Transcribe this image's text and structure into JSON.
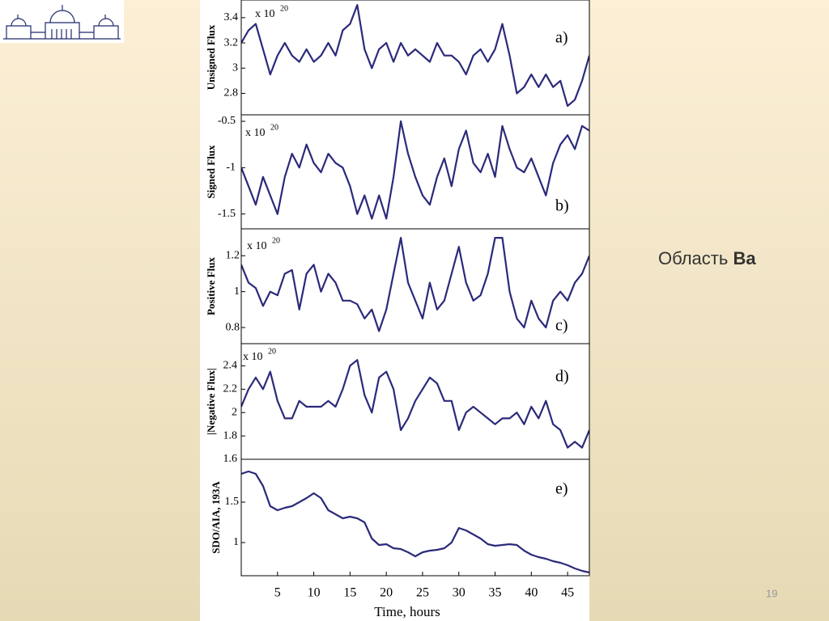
{
  "chart_data": [
    {
      "type": "line",
      "ylabel": "Unsigned Flux",
      "annotation": "x 10",
      "exponent": "20",
      "panel_label": "a)",
      "color": "#2b2a7a",
      "x": [
        0,
        1,
        2,
        3,
        4,
        5,
        6,
        7,
        8,
        9,
        10,
        11,
        12,
        13,
        14,
        15,
        16,
        17,
        18,
        19,
        20,
        21,
        22,
        23,
        24,
        25,
        26,
        27,
        28,
        29,
        30,
        31,
        32,
        33,
        34,
        35,
        36,
        37,
        38,
        39,
        40,
        41,
        42,
        43,
        44,
        45,
        46,
        47,
        48
      ],
      "values": [
        3.2,
        3.3,
        3.35,
        3.15,
        2.95,
        3.1,
        3.2,
        3.1,
        3.05,
        3.15,
        3.05,
        3.1,
        3.2,
        3.1,
        3.3,
        3.35,
        3.5,
        3.15,
        3.0,
        3.15,
        3.2,
        3.05,
        3.2,
        3.1,
        3.15,
        3.1,
        3.05,
        3.2,
        3.1,
        3.1,
        3.05,
        2.95,
        3.1,
        3.15,
        3.05,
        3.15,
        3.35,
        3.1,
        2.8,
        2.85,
        2.95,
        2.85,
        2.95,
        2.85,
        2.9,
        2.7,
        2.75,
        2.9,
        3.1
      ],
      "xlim": [
        0,
        48
      ],
      "ylim": [
        2.63,
        3.54
      ],
      "yticks": [
        2.8,
        3,
        3.2,
        3.4
      ]
    },
    {
      "type": "line",
      "ylabel": "Signed Flux",
      "annotation": "x 10",
      "exponent": "20",
      "panel_label": "b)",
      "color": "#2b2a7a",
      "x": [
        0,
        1,
        2,
        3,
        4,
        5,
        6,
        7,
        8,
        9,
        10,
        11,
        12,
        13,
        14,
        15,
        16,
        17,
        18,
        19,
        20,
        21,
        22,
        23,
        24,
        25,
        26,
        27,
        28,
        29,
        30,
        31,
        32,
        33,
        34,
        35,
        36,
        37,
        38,
        39,
        40,
        41,
        42,
        43,
        44,
        45,
        46,
        47,
        48
      ],
      "values": [
        -1.0,
        -1.2,
        -1.4,
        -1.1,
        -1.3,
        -1.5,
        -1.1,
        -0.85,
        -1.0,
        -0.75,
        -0.95,
        -1.05,
        -0.85,
        -0.95,
        -1.0,
        -1.2,
        -1.5,
        -1.3,
        -1.55,
        -1.3,
        -1.55,
        -1.1,
        -0.5,
        -0.85,
        -1.1,
        -1.3,
        -1.4,
        -1.1,
        -0.9,
        -1.2,
        -0.8,
        -0.6,
        -0.95,
        -1.05,
        -0.85,
        -1.1,
        -0.55,
        -0.8,
        -1.0,
        -1.05,
        -0.9,
        -1.1,
        -1.3,
        -0.95,
        -0.75,
        -0.65,
        -0.8,
        -0.55,
        -0.6
      ],
      "xlim": [
        0,
        48
      ],
      "ylim": [
        -1.66,
        -0.43
      ],
      "yticks": [
        -1.5,
        -1,
        -0.5
      ]
    },
    {
      "type": "line",
      "ylabel": "Positive Flux",
      "annotation": "x 10",
      "exponent": "20",
      "panel_label": "c)",
      "color": "#2b2a7a",
      "x": [
        0,
        1,
        2,
        3,
        4,
        5,
        6,
        7,
        8,
        9,
        10,
        11,
        12,
        13,
        14,
        15,
        16,
        17,
        18,
        19,
        20,
        21,
        22,
        23,
        24,
        25,
        26,
        27,
        28,
        29,
        30,
        31,
        32,
        33,
        34,
        35,
        36,
        37,
        38,
        39,
        40,
        41,
        42,
        43,
        44,
        45,
        46,
        47,
        48
      ],
      "values": [
        1.15,
        1.05,
        1.02,
        0.92,
        1.0,
        0.98,
        1.1,
        1.12,
        0.9,
        1.1,
        1.15,
        1.0,
        1.1,
        1.05,
        0.95,
        0.95,
        0.93,
        0.85,
        0.9,
        0.78,
        0.9,
        1.1,
        1.3,
        1.05,
        0.95,
        0.85,
        1.05,
        0.9,
        0.95,
        1.1,
        1.25,
        1.05,
        0.95,
        0.98,
        1.1,
        1.3,
        1.3,
        1.0,
        0.85,
        0.8,
        0.95,
        0.85,
        0.8,
        0.95,
        1.0,
        0.95,
        1.05,
        1.1,
        1.2
      ],
      "xlim": [
        0,
        48
      ],
      "ylim": [
        0.71,
        1.35
      ],
      "yticks": [
        0.8,
        1,
        1.2
      ]
    },
    {
      "type": "line",
      "ylabel": "|Negative Flux|",
      "annotation": "x 10",
      "exponent": "20",
      "panel_label": "d)",
      "color": "#2b2a7a",
      "x": [
        0,
        1,
        2,
        3,
        4,
        5,
        6,
        7,
        8,
        9,
        10,
        11,
        12,
        13,
        14,
        15,
        16,
        17,
        18,
        19,
        20,
        21,
        22,
        23,
        24,
        25,
        26,
        27,
        28,
        29,
        30,
        31,
        32,
        33,
        34,
        35,
        36,
        37,
        38,
        39,
        40,
        41,
        42,
        43,
        44,
        45,
        46,
        47,
        48
      ],
      "values": [
        2.05,
        2.2,
        2.3,
        2.2,
        2.35,
        2.1,
        1.95,
        1.95,
        2.1,
        2.05,
        2.05,
        2.05,
        2.1,
        2.05,
        2.2,
        2.4,
        2.45,
        2.15,
        2.0,
        2.3,
        2.35,
        2.2,
        1.85,
        1.95,
        2.1,
        2.2,
        2.3,
        2.25,
        2.1,
        2.1,
        1.85,
        2.0,
        2.05,
        2.0,
        1.95,
        1.9,
        1.95,
        1.95,
        2.0,
        1.9,
        2.05,
        1.95,
        2.1,
        1.9,
        1.85,
        1.7,
        1.75,
        1.7,
        1.85
      ],
      "xlim": [
        0,
        48
      ],
      "ylim": [
        1.6,
        2.59
      ],
      "yticks": [
        1.6,
        1.8,
        2,
        2.2,
        2.4
      ]
    },
    {
      "type": "line",
      "ylabel": "SDO/AIA, 193A",
      "panel_label": "e)",
      "xlabel": "Time, hours",
      "color": "#2b2a7a",
      "x": [
        0,
        1,
        2,
        3,
        4,
        5,
        6,
        7,
        8,
        9,
        10,
        11,
        12,
        13,
        14,
        15,
        16,
        17,
        18,
        19,
        20,
        21,
        22,
        23,
        24,
        25,
        26,
        27,
        28,
        29,
        30,
        31,
        32,
        33,
        34,
        35,
        36,
        37,
        38,
        39,
        40,
        41,
        42,
        43,
        44,
        45,
        46,
        47,
        48
      ],
      "values": [
        1.85,
        1.88,
        1.85,
        1.7,
        1.45,
        1.4,
        1.43,
        1.45,
        1.5,
        1.55,
        1.61,
        1.55,
        1.4,
        1.35,
        1.3,
        1.32,
        1.3,
        1.25,
        1.05,
        0.97,
        0.98,
        0.93,
        0.92,
        0.88,
        0.83,
        0.88,
        0.9,
        0.91,
        0.93,
        1.0,
        1.18,
        1.15,
        1.1,
        1.05,
        0.98,
        0.96,
        0.97,
        0.98,
        0.97,
        0.9,
        0.85,
        0.82,
        0.8,
        0.77,
        0.75,
        0.72,
        0.68,
        0.65,
        0.63
      ],
      "xlim": [
        0,
        48
      ],
      "ylim": [
        0.59,
        2.03
      ],
      "yticks": [
        1,
        1.5
      ],
      "xticks": [
        5,
        10,
        15,
        20,
        25,
        30,
        35,
        40,
        45
      ]
    }
  ],
  "slide": {
    "caption_prefix": "Область",
    "caption_bold": "Ва",
    "page_number": "19"
  }
}
